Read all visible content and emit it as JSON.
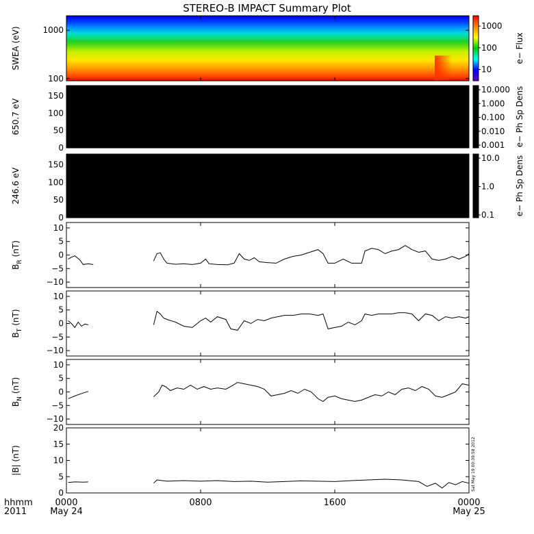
{
  "chart_data": {
    "type": "line",
    "title": "STEREO-B IMPACT Summary Plot",
    "timestamp": "Sat May 19 00:39:58 2012",
    "corner_labels": {
      "top": "hhmm",
      "bottom": "2011"
    },
    "x_ticks": [
      {
        "t": 0,
        "time": "0000",
        "date": "May 24"
      },
      {
        "t": 8,
        "time": "0800",
        "date": ""
      },
      {
        "t": 16,
        "time": "1600",
        "date": ""
      },
      {
        "t": 24,
        "time": "0000",
        "date": "May 25"
      }
    ],
    "xlim": [
      0,
      24
    ],
    "panels": [
      {
        "id": "swea",
        "type": "heatmap",
        "ylabel": "SWEA (eV)",
        "yscale": "log",
        "ylim": [
          90,
          2000
        ],
        "yticks": [
          "1000",
          "100"
        ],
        "ytick_values": [
          1000,
          100
        ],
        "colorbar_label": "e− Flux",
        "colorbar_ticks": [
          "1000",
          "100",
          "10"
        ],
        "colorbar_values": [
          1000,
          100,
          10
        ],
        "colorbar_range": [
          3,
          3000
        ]
      },
      {
        "id": "pad650",
        "type": "heatmap",
        "ylabel": "650.7 eV",
        "ylim": [
          0,
          180
        ],
        "yticks": [
          "150",
          "100",
          "50",
          "0"
        ],
        "ytick_values": [
          150,
          100,
          50,
          0
        ],
        "colorbar_label": "e− Ph Sp Dens",
        "colorbar_ticks": [
          "10.000",
          "1.000",
          "0.100",
          "0.010",
          "0.001"
        ]
      },
      {
        "id": "pad246",
        "type": "heatmap",
        "ylabel": "246.6 eV",
        "ylim": [
          0,
          180
        ],
        "yticks": [
          "150",
          "100",
          "50",
          "0"
        ],
        "ytick_values": [
          150,
          100,
          50,
          0
        ],
        "colorbar_label": "e− Ph Sp Dens",
        "colorbar_ticks": [
          "10.0",
          "1.0",
          "0.1"
        ]
      },
      {
        "id": "br",
        "type": "line",
        "ylabel": "B",
        "ylabel_sub": "R",
        "ylabel_unit": "(nT)",
        "ylim": [
          -12,
          12
        ],
        "yticks": [
          "10",
          "5",
          "0",
          "−5",
          "−10"
        ],
        "ytick_values": [
          10,
          5,
          0,
          -5,
          -10
        ],
        "segments": [
          [
            [
              0.1,
              -1.5
            ],
            [
              0.3,
              -0.8
            ],
            [
              0.5,
              -0.3
            ],
            [
              0.8,
              -1.8
            ],
            [
              1.0,
              -3.5
            ],
            [
              1.3,
              -3.2
            ],
            [
              1.6,
              -3.5
            ]
          ],
          [
            [
              5.2,
              -2.2
            ],
            [
              5.4,
              0.5
            ],
            [
              5.6,
              0.8
            ],
            [
              5.8,
              -1.5
            ],
            [
              6.0,
              -3.0
            ],
            [
              6.5,
              -3.4
            ],
            [
              7.0,
              -3.2
            ],
            [
              7.5,
              -3.5
            ],
            [
              8.0,
              -3.0
            ],
            [
              8.3,
              -1.5
            ],
            [
              8.5,
              -3.2
            ],
            [
              9.0,
              -3.5
            ],
            [
              9.6,
              -3.6
            ],
            [
              10.0,
              -3.0
            ],
            [
              10.3,
              0.5
            ],
            [
              10.6,
              -1.5
            ],
            [
              10.9,
              -2.0
            ],
            [
              11.2,
              -1.0
            ],
            [
              11.5,
              -2.5
            ],
            [
              12.0,
              -2.8
            ],
            [
              12.5,
              -3.0
            ],
            [
              13.0,
              -1.5
            ],
            [
              13.5,
              -0.5
            ],
            [
              14.0,
              0.0
            ],
            [
              14.5,
              1.0
            ],
            [
              15.0,
              2.0
            ],
            [
              15.3,
              0.5
            ],
            [
              15.6,
              -3.0
            ],
            [
              16.0,
              -3.0
            ],
            [
              16.5,
              -1.5
            ],
            [
              17.0,
              -3.0
            ],
            [
              17.6,
              -3.0
            ],
            [
              17.8,
              1.5
            ],
            [
              18.2,
              2.5
            ],
            [
              18.6,
              2.0
            ],
            [
              19.0,
              0.5
            ],
            [
              19.4,
              1.5
            ],
            [
              19.8,
              2.0
            ],
            [
              20.2,
              3.5
            ],
            [
              20.6,
              2.0
            ],
            [
              21.0,
              1.0
            ],
            [
              21.4,
              1.5
            ],
            [
              21.8,
              -1.5
            ],
            [
              22.2,
              -2.0
            ],
            [
              22.6,
              -1.5
            ],
            [
              23.0,
              -0.5
            ],
            [
              23.4,
              -1.5
            ],
            [
              23.8,
              -0.5
            ],
            [
              24.0,
              0.5
            ]
          ]
        ]
      },
      {
        "id": "bt",
        "type": "line",
        "ylabel": "B",
        "ylabel_sub": "T",
        "ylabel_unit": "(nT)",
        "ylim": [
          -12,
          12
        ],
        "yticks": [
          "10",
          "5",
          "0",
          "−5",
          "−10"
        ],
        "ytick_values": [
          10,
          5,
          0,
          -5,
          -10
        ],
        "segments": [
          [
            [
              0.1,
              1.0
            ],
            [
              0.3,
              0.0
            ],
            [
              0.5,
              -1.5
            ],
            [
              0.7,
              0.5
            ],
            [
              0.9,
              -1.0
            ],
            [
              1.1,
              -0.2
            ],
            [
              1.3,
              -0.5
            ]
          ],
          [
            [
              5.2,
              -0.5
            ],
            [
              5.4,
              4.5
            ],
            [
              5.6,
              3.5
            ],
            [
              5.8,
              2.0
            ],
            [
              6.0,
              1.5
            ],
            [
              6.5,
              0.5
            ],
            [
              7.0,
              -1.0
            ],
            [
              7.5,
              -1.5
            ],
            [
              8.0,
              1.0
            ],
            [
              8.3,
              2.0
            ],
            [
              8.6,
              0.5
            ],
            [
              9.0,
              2.5
            ],
            [
              9.5,
              1.5
            ],
            [
              9.8,
              -2.0
            ],
            [
              10.2,
              -2.5
            ],
            [
              10.6,
              1.0
            ],
            [
              11.0,
              0.0
            ],
            [
              11.4,
              1.5
            ],
            [
              11.8,
              1.0
            ],
            [
              12.2,
              2.0
            ],
            [
              12.6,
              2.5
            ],
            [
              13.0,
              3.0
            ],
            [
              13.5,
              3.0
            ],
            [
              14.0,
              3.5
            ],
            [
              14.5,
              3.5
            ],
            [
              15.0,
              3.0
            ],
            [
              15.3,
              3.5
            ],
            [
              15.6,
              -2.0
            ],
            [
              16.0,
              -1.5
            ],
            [
              16.4,
              -1.0
            ],
            [
              16.8,
              0.5
            ],
            [
              17.2,
              -0.5
            ],
            [
              17.6,
              1.0
            ],
            [
              17.8,
              3.5
            ],
            [
              18.2,
              3.0
            ],
            [
              18.6,
              3.5
            ],
            [
              19.0,
              3.5
            ],
            [
              19.4,
              3.5
            ],
            [
              19.8,
              4.0
            ],
            [
              20.2,
              4.0
            ],
            [
              20.6,
              3.5
            ],
            [
              21.0,
              1.0
            ],
            [
              21.4,
              3.5
            ],
            [
              21.8,
              3.0
            ],
            [
              22.2,
              1.0
            ],
            [
              22.6,
              2.5
            ],
            [
              23.0,
              2.0
            ],
            [
              23.4,
              2.5
            ],
            [
              23.8,
              2.0
            ],
            [
              24.0,
              2.5
            ]
          ]
        ]
      },
      {
        "id": "bn",
        "type": "line",
        "ylabel": "B",
        "ylabel_sub": "N",
        "ylabel_unit": "(nT)",
        "ylim": [
          -12,
          12
        ],
        "yticks": [
          "10",
          "5",
          "0",
          "−5",
          "−10"
        ],
        "ytick_values": [
          10,
          5,
          0,
          -5,
          -10
        ],
        "segments": [
          [
            [
              0.1,
              -2.5
            ],
            [
              0.3,
              -2.0
            ],
            [
              0.5,
              -1.5
            ],
            [
              0.8,
              -0.8
            ],
            [
              1.1,
              -0.2
            ],
            [
              1.3,
              0.2
            ]
          ],
          [
            [
              5.2,
              -1.8
            ],
            [
              5.5,
              0.0
            ],
            [
              5.7,
              2.5
            ],
            [
              5.9,
              2.0
            ],
            [
              6.2,
              0.5
            ],
            [
              6.6,
              1.5
            ],
            [
              7.0,
              1.0
            ],
            [
              7.4,
              2.5
            ],
            [
              7.8,
              1.0
            ],
            [
              8.2,
              2.0
            ],
            [
              8.6,
              1.0
            ],
            [
              9.0,
              1.5
            ],
            [
              9.5,
              1.0
            ],
            [
              9.8,
              2.0
            ],
            [
              10.2,
              3.5
            ],
            [
              10.6,
              3.0
            ],
            [
              11.0,
              2.5
            ],
            [
              11.4,
              2.0
            ],
            [
              11.8,
              1.0
            ],
            [
              12.2,
              -1.5
            ],
            [
              12.6,
              -1.0
            ],
            [
              13.0,
              -0.5
            ],
            [
              13.4,
              0.5
            ],
            [
              13.8,
              -0.5
            ],
            [
              14.2,
              1.0
            ],
            [
              14.6,
              0.0
            ],
            [
              15.0,
              -2.5
            ],
            [
              15.3,
              -3.5
            ],
            [
              15.6,
              -2.0
            ],
            [
              16.0,
              -1.5
            ],
            [
              16.4,
              -2.5
            ],
            [
              16.8,
              -3.0
            ],
            [
              17.2,
              -3.5
            ],
            [
              17.6,
              -3.0
            ],
            [
              18.0,
              -2.0
            ],
            [
              18.4,
              -1.0
            ],
            [
              18.8,
              -1.5
            ],
            [
              19.2,
              0.0
            ],
            [
              19.6,
              -1.0
            ],
            [
              20.0,
              1.0
            ],
            [
              20.4,
              1.5
            ],
            [
              20.8,
              0.5
            ],
            [
              21.2,
              2.0
            ],
            [
              21.6,
              1.0
            ],
            [
              22.0,
              -1.5
            ],
            [
              22.4,
              -2.0
            ],
            [
              22.8,
              -1.0
            ],
            [
              23.2,
              0.0
            ],
            [
              23.6,
              3.0
            ],
            [
              24.0,
              2.5
            ]
          ]
        ]
      },
      {
        "id": "bmag",
        "type": "line",
        "ylabel": "|B| (nT)",
        "ylim": [
          0,
          20
        ],
        "yticks": [
          "20",
          "15",
          "10",
          "5",
          "0"
        ],
        "ytick_values": [
          20,
          15,
          10,
          5,
          0
        ],
        "segments": [
          [
            [
              0.1,
              3.2
            ],
            [
              0.5,
              3.4
            ],
            [
              1.0,
              3.3
            ],
            [
              1.3,
              3.4
            ]
          ],
          [
            [
              5.2,
              3.0
            ],
            [
              5.4,
              4.0
            ],
            [
              6.0,
              3.6
            ],
            [
              7.0,
              3.8
            ],
            [
              8.0,
              3.6
            ],
            [
              9.0,
              3.8
            ],
            [
              10.0,
              3.5
            ],
            [
              11.0,
              3.6
            ],
            [
              12.0,
              3.3
            ],
            [
              13.0,
              3.5
            ],
            [
              14.0,
              3.7
            ],
            [
              15.0,
              3.6
            ],
            [
              16.0,
              3.5
            ],
            [
              17.0,
              3.8
            ],
            [
              18.0,
              4.0
            ],
            [
              19.0,
              4.2
            ],
            [
              20.0,
              4.0
            ],
            [
              21.0,
              3.5
            ],
            [
              21.5,
              2.0
            ],
            [
              22.0,
              3.0
            ],
            [
              22.4,
              1.5
            ],
            [
              22.8,
              3.2
            ],
            [
              23.2,
              2.5
            ],
            [
              23.6,
              3.5
            ],
            [
              24.0,
              3.0
            ]
          ]
        ]
      }
    ]
  }
}
